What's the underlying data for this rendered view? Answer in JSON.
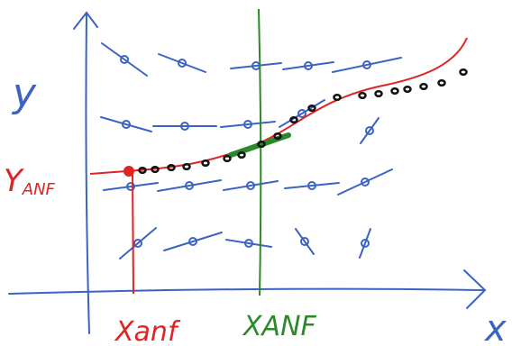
{
  "axes": {
    "y_label": "y",
    "x_label": "x"
  },
  "labels": {
    "y_start": {
      "main": "Y",
      "subscript": "ANF"
    },
    "x_start": "Xanf",
    "x_target": "XANF"
  }
}
